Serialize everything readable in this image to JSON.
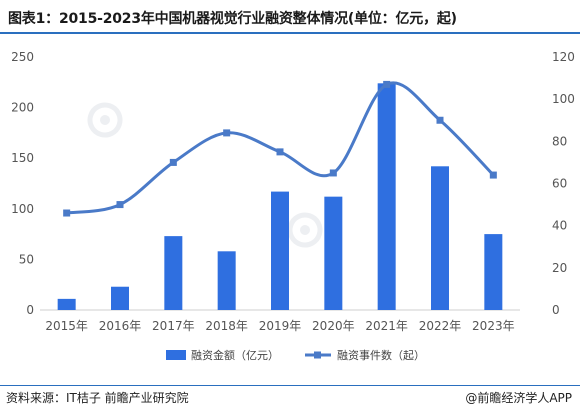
{
  "header": {
    "title": "图表1：2015-2023年中国机器视觉行业融资整体情况(单位：亿元，起)"
  },
  "footer": {
    "source": "资料来源：IT桔子 前瞻产业研究院",
    "brand": "@前瞻经济学人APP"
  },
  "colors": {
    "bar": "#2f6fe0",
    "line": "#4a7ac8",
    "rule": "#2a6fbf"
  },
  "chart_data": {
    "type": "bar",
    "title": "图表1：2015-2023年中国机器视觉行业融资整体情况(单位：亿元，起)",
    "categories": [
      "2015年",
      "2016年",
      "2017年",
      "2018年",
      "2019年",
      "2020年",
      "2021年",
      "2022年",
      "2023年"
    ],
    "series": [
      {
        "name": "融资金额（亿元）",
        "type": "bar",
        "axis": "left",
        "values": [
          11,
          23,
          73,
          58,
          117,
          112,
          224,
          142,
          75
        ]
      },
      {
        "name": "融资事件数（起）",
        "type": "line",
        "axis": "right",
        "smooth": true,
        "values": [
          46,
          50,
          70,
          84,
          75,
          65,
          107,
          90,
          64
        ]
      }
    ],
    "y_left": {
      "min": 0,
      "max": 250,
      "ticks": [
        0,
        50,
        100,
        150,
        200,
        250
      ]
    },
    "y_right": {
      "min": 0,
      "max": 120,
      "ticks": [
        0,
        20,
        40,
        60,
        80,
        100,
        120
      ]
    },
    "grid": false,
    "legend": "bottom-center"
  }
}
